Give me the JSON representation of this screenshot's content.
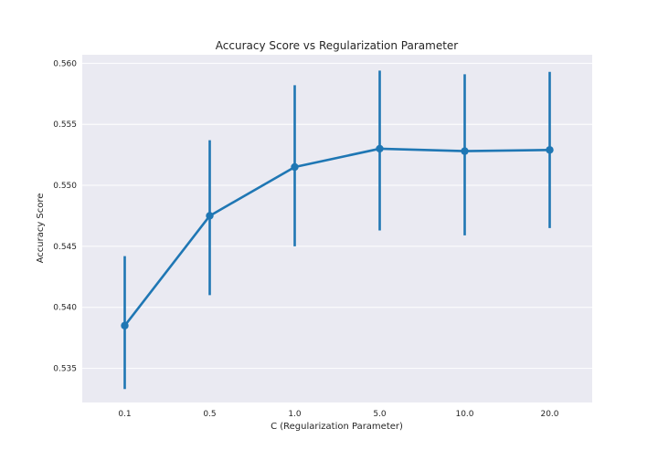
{
  "chart_data": {
    "type": "line",
    "title": "Accuracy Score vs Regularization Parameter",
    "xlabel": "C (Regularization Parameter)",
    "ylabel": "Accuracy Score",
    "categories": [
      "0.1",
      "0.5",
      "1.0",
      "5.0",
      "10.0",
      "20.0"
    ],
    "series": [
      {
        "values": [
          0.5385,
          0.5475,
          0.5515,
          0.553,
          0.5528,
          0.5529
        ],
        "error_low": [
          0.5333,
          0.541,
          0.545,
          0.5463,
          0.5459,
          0.5465
        ],
        "error_high": [
          0.5442,
          0.5537,
          0.5582,
          0.5594,
          0.5591,
          0.5593
        ],
        "color": "#1f77b4"
      }
    ],
    "ylim": [
      0.5322,
      0.5607
    ],
    "yticks": [
      "0.535",
      "0.540",
      "0.545",
      "0.550",
      "0.555",
      "0.560"
    ],
    "grid": true,
    "background": "#eaeaf2",
    "grid_color": "#ffffff"
  }
}
